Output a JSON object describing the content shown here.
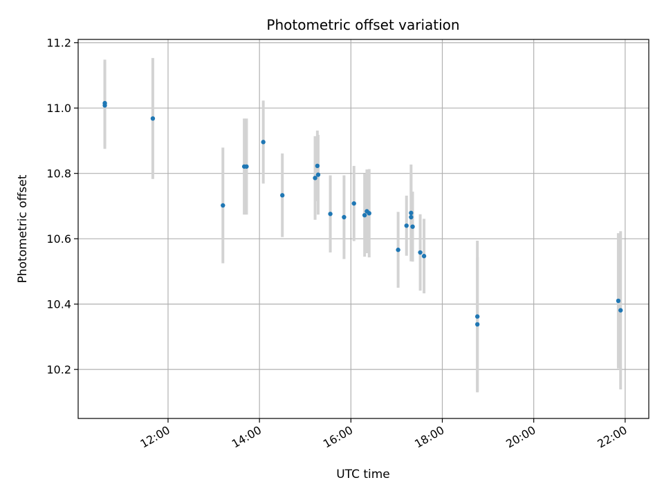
{
  "chart_data": {
    "type": "scatter",
    "title": "Photometric offset variation",
    "xlabel": "UTC time",
    "ylabel": "Photometric offset",
    "x_tick_labels": [
      "12:00",
      "14:00",
      "16:00",
      "18:00",
      "20:00",
      "22:00"
    ],
    "x_ticks": [
      "12:00",
      "14:00",
      "16:00",
      "18:00",
      "20:00",
      "22:00"
    ],
    "y_ticks": [
      10.2,
      10.4,
      10.6,
      10.8,
      11.0,
      11.2
    ],
    "y_tick_labels": [
      "10.2",
      "10.4",
      "10.6",
      "10.8",
      "11.0",
      "11.2"
    ],
    "xlim": [
      "10:02",
      "22:31"
    ],
    "ylim": [
      10.05,
      11.21
    ],
    "grid": true,
    "point_color": "#1f77b4",
    "errorbar_color": "#d3d3d3",
    "points": [
      {
        "x": "10:37",
        "y": 11.015,
        "err": 0.133
      },
      {
        "x": "10:37",
        "y": 11.008,
        "err": 0.133
      },
      {
        "x": "11:40",
        "y": 10.968,
        "err": 0.185
      },
      {
        "x": "13:12",
        "y": 10.702,
        "err": 0.177
      },
      {
        "x": "13:40",
        "y": 10.821,
        "err": 0.147
      },
      {
        "x": "13:43",
        "y": 10.821,
        "err": 0.147
      },
      {
        "x": "14:05",
        "y": 10.896,
        "err": 0.127
      },
      {
        "x": "14:30",
        "y": 10.733,
        "err": 0.128
      },
      {
        "x": "15:13",
        "y": 10.786,
        "err": 0.128
      },
      {
        "x": "15:16",
        "y": 10.823,
        "err": 0.108
      },
      {
        "x": "15:17",
        "y": 10.796,
        "err": 0.122
      },
      {
        "x": "15:33",
        "y": 10.676,
        "err": 0.118
      },
      {
        "x": "15:51",
        "y": 10.666,
        "err": 0.128
      },
      {
        "x": "16:04",
        "y": 10.708,
        "err": 0.115
      },
      {
        "x": "16:18",
        "y": 10.672,
        "err": 0.127
      },
      {
        "x": "16:21",
        "y": 10.684,
        "err": 0.128
      },
      {
        "x": "16:24",
        "y": 10.678,
        "err": 0.135
      },
      {
        "x": "17:02",
        "y": 10.566,
        "err": 0.116
      },
      {
        "x": "17:13",
        "y": 10.64,
        "err": 0.092
      },
      {
        "x": "17:19",
        "y": 10.679,
        "err": 0.148
      },
      {
        "x": "17:19",
        "y": 10.666,
        "err": 0.135
      },
      {
        "x": "17:21",
        "y": 10.637,
        "err": 0.107
      },
      {
        "x": "17:31",
        "y": 10.558,
        "err": 0.117
      },
      {
        "x": "17:36",
        "y": 10.547,
        "err": 0.114
      },
      {
        "x": "18:46",
        "y": 10.362,
        "err": 0.232
      },
      {
        "x": "18:46",
        "y": 10.338,
        "err": 0.205
      },
      {
        "x": "21:51",
        "y": 10.41,
        "err": 0.207
      },
      {
        "x": "21:54",
        "y": 10.381,
        "err": 0.242
      }
    ]
  }
}
